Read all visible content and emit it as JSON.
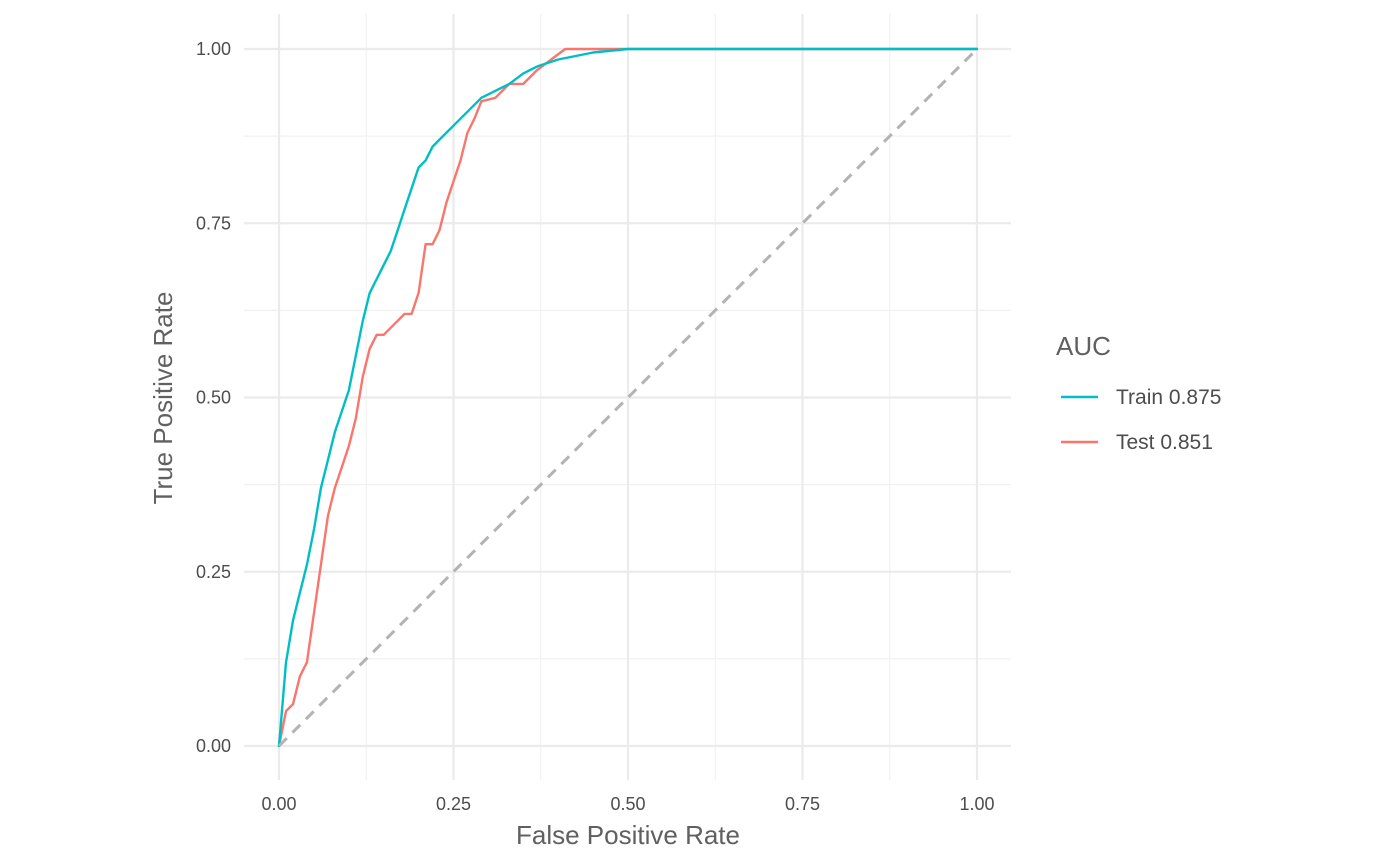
{
  "chart_data": {
    "type": "line",
    "title": "",
    "xlabel": "False Positive Rate",
    "ylabel": "True Positive Rate",
    "xlim": [
      0,
      1
    ],
    "ylim": [
      0,
      1
    ],
    "grid": true,
    "x_ticks": [
      0,
      0.25,
      0.5,
      0.75,
      1
    ],
    "x_tick_labels": [
      "0.00",
      "0.25",
      "0.50",
      "0.75",
      "1.00"
    ],
    "y_ticks": [
      0,
      0.25,
      0.5,
      0.75,
      1
    ],
    "y_tick_labels": [
      "0.00",
      "0.25",
      "0.50",
      "0.75",
      "1.00"
    ],
    "legend": {
      "title": "AUC",
      "position": "right"
    },
    "reference_line": {
      "x": [
        0,
        1
      ],
      "y": [
        0,
        1
      ],
      "style": "dashed",
      "color": "#b3b3b3"
    },
    "series": [
      {
        "name": "Train 0.875",
        "color": "#00BFC4",
        "x": [
          0,
          0.005,
          0.01,
          0.015,
          0.02,
          0.03,
          0.04,
          0.05,
          0.06,
          0.07,
          0.08,
          0.09,
          0.1,
          0.11,
          0.12,
          0.13,
          0.14,
          0.15,
          0.16,
          0.17,
          0.18,
          0.19,
          0.2,
          0.21,
          0.22,
          0.23,
          0.24,
          0.25,
          0.27,
          0.29,
          0.31,
          0.33,
          0.35,
          0.37,
          0.4,
          0.45,
          0.5,
          0.6,
          0.8,
          1.0
        ],
        "y": [
          0,
          0.06,
          0.12,
          0.15,
          0.18,
          0.22,
          0.26,
          0.31,
          0.37,
          0.41,
          0.45,
          0.48,
          0.51,
          0.56,
          0.61,
          0.65,
          0.67,
          0.69,
          0.71,
          0.74,
          0.77,
          0.8,
          0.83,
          0.84,
          0.86,
          0.87,
          0.88,
          0.89,
          0.91,
          0.93,
          0.94,
          0.95,
          0.965,
          0.975,
          0.985,
          0.995,
          1.0,
          1.0,
          1.0,
          1.0
        ]
      },
      {
        "name": "Test 0.851",
        "color": "#F8766D",
        "x": [
          0,
          0.01,
          0.02,
          0.03,
          0.04,
          0.05,
          0.06,
          0.07,
          0.08,
          0.09,
          0.1,
          0.11,
          0.12,
          0.13,
          0.14,
          0.15,
          0.17,
          0.18,
          0.19,
          0.2,
          0.21,
          0.22,
          0.23,
          0.24,
          0.25,
          0.26,
          0.27,
          0.28,
          0.29,
          0.31,
          0.33,
          0.35,
          0.37,
          0.39,
          0.41,
          0.45,
          0.55,
          0.75,
          1.0
        ],
        "y": [
          0,
          0.05,
          0.06,
          0.1,
          0.12,
          0.19,
          0.26,
          0.33,
          0.37,
          0.4,
          0.43,
          0.47,
          0.53,
          0.57,
          0.59,
          0.59,
          0.61,
          0.62,
          0.62,
          0.65,
          0.72,
          0.72,
          0.74,
          0.78,
          0.81,
          0.84,
          0.88,
          0.9,
          0.925,
          0.93,
          0.95,
          0.95,
          0.97,
          0.985,
          1.0,
          1.0,
          1.0,
          1.0,
          1.0
        ]
      }
    ]
  }
}
